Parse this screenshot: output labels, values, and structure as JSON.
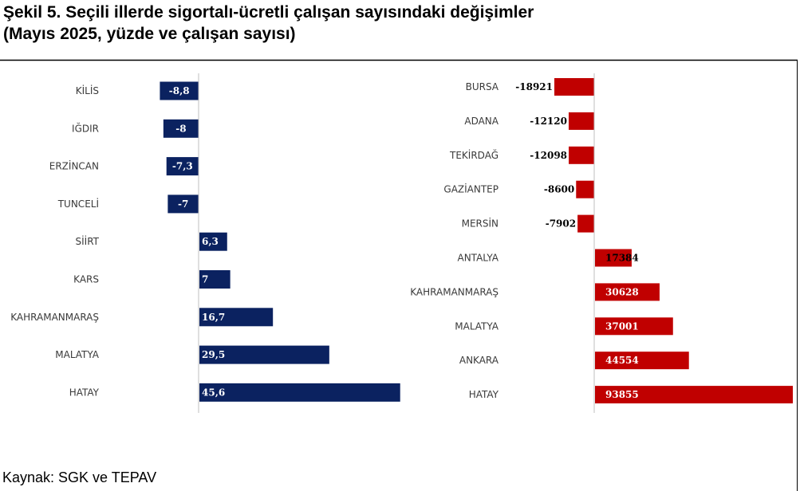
{
  "title_line1": "Şekil 5. Seçili illerde sigortalı-ücretli çalışan sayısındaki değişimler",
  "title_line2": "(Mayıs 2025, yüzde ve çalışan sayısı)",
  "source": "Kaynak: SGK ve TEPAV",
  "colors": {
    "left_bar": "#0b2260",
    "right_bar": "#c00000",
    "axis": "#bfbfbf"
  },
  "chart_data": [
    {
      "type": "bar",
      "orientation": "horizontal",
      "unit": "yüzde",
      "categories": [
        "KİLİS",
        "IĞDIR",
        "ERZİNCAN",
        "TUNCELİ",
        "SİİRT",
        "KARS",
        "KAHRAMANMARAŞ",
        "MALATYA",
        "HATAY"
      ],
      "values": [
        -8.8,
        -8,
        -7.3,
        -7,
        6.3,
        7,
        16.7,
        29.5,
        45.6
      ],
      "labels": [
        "-8,8",
        "-8",
        "-7,3",
        "-7",
        "6,3",
        "7",
        "16,7",
        "29,5",
        "45,6"
      ],
      "xlim": [
        -10,
        46
      ],
      "grid": false,
      "legend": "none"
    },
    {
      "type": "bar",
      "orientation": "horizontal",
      "unit": "çalışan sayısı",
      "categories": [
        "BURSA",
        "ADANA",
        "TEKİRDAĞ",
        "GAZİANTEP",
        "MERSİN",
        "ANTALYA",
        "KAHRAMANMARAŞ",
        "MALATYA",
        "ANKARA",
        "HATAY"
      ],
      "values": [
        -18921,
        -12120,
        -12098,
        -8600,
        -7902,
        17384,
        30628,
        37001,
        44554,
        93855
      ],
      "labels": [
        "-18921",
        "-12120",
        "-12098",
        "-8600",
        "-7902",
        "17384",
        "30628",
        "37001",
        "44554",
        "93855"
      ],
      "xlim": [
        -19000,
        94000
      ],
      "grid": false,
      "legend": "none"
    }
  ]
}
